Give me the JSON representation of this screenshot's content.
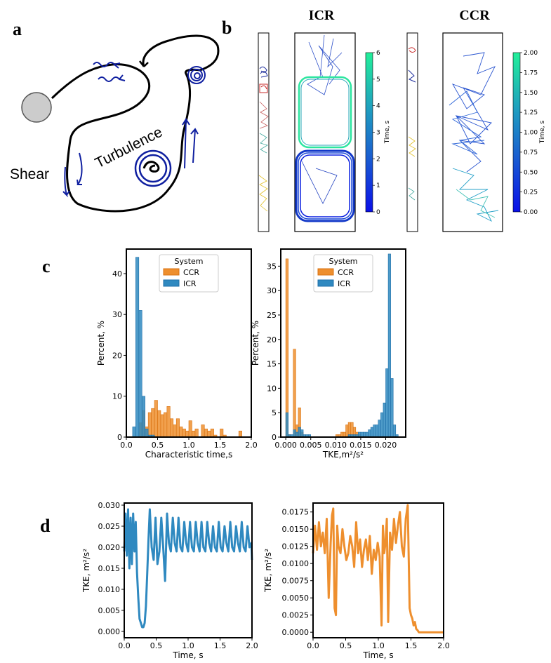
{
  "panel_labels": {
    "a": "a",
    "b": "b",
    "c": "c",
    "d": "d"
  },
  "schematic": {
    "shear_label": "Shear",
    "turbulence_label": "Turbulence"
  },
  "trajectories": {
    "icr_title": "ICR",
    "ccr_title": "CCR",
    "icr_colorbar": {
      "label": "Time, s",
      "ticks": [
        "0",
        "1",
        "2",
        "3",
        "4",
        "5",
        "6"
      ]
    },
    "ccr_colorbar": {
      "label": "Time, s",
      "ticks": [
        "0.00",
        "0.25",
        "0.50",
        "0.75",
        "1.00",
        "1.25",
        "1.50",
        "1.75",
        "2.00"
      ]
    }
  },
  "colors": {
    "ccr": "#ee8f2e",
    "icr": "#2f89c0",
    "ccr_edge": "#d97210",
    "icr_edge": "#1f6fa8",
    "arrow": "#0f1fa0"
  },
  "chart_data": [
    {
      "type": "histogram",
      "panel": "c-left",
      "xlabel": "Characteristic time,s",
      "ylabel": "Percent, %",
      "xlim": [
        0,
        2.0
      ],
      "ylim": [
        0,
        46
      ],
      "xticks": [
        "0.0",
        "0.5",
        "1.0",
        "1.5",
        "2.0"
      ],
      "yticks": [
        "0",
        "10",
        "20",
        "30",
        "40"
      ],
      "legend": {
        "title": "System",
        "entries": [
          "CCR",
          "ICR"
        ],
        "position": "top-center"
      },
      "series": [
        {
          "name": "CCR",
          "bin_start": 0.1,
          "bin_width": 0.05,
          "values": [
            0,
            0,
            3.5,
            6.5,
            2.5,
            6,
            7,
            9,
            6.5,
            5.5,
            6,
            7.5,
            4.5,
            3,
            4.5,
            2.5,
            2,
            1.5,
            4,
            1.5,
            2,
            0,
            3,
            2,
            1.5,
            2,
            0.5,
            0,
            2,
            0.5,
            0,
            0,
            0,
            0,
            1.5,
            0,
            0,
            0
          ]
        },
        {
          "name": "ICR",
          "bin_start": 0.1,
          "bin_width": 0.05,
          "values": [
            2.5,
            44,
            31,
            10,
            2,
            0.5,
            0.5,
            0,
            0,
            0,
            0,
            0,
            0,
            0,
            0,
            0,
            0,
            0,
            0,
            0,
            0,
            0,
            0,
            0,
            0,
            0,
            0,
            0,
            0,
            0,
            0,
            0,
            0,
            0,
            0,
            0,
            0,
            0
          ]
        }
      ]
    },
    {
      "type": "histogram",
      "panel": "c-right",
      "xlabel": "TKE,m²/s²",
      "ylabel": "Percent, %",
      "xlim": [
        -0.001,
        0.024
      ],
      "ylim": [
        0,
        38.5
      ],
      "xticks": [
        "0.000",
        "0.005",
        "0.010",
        "0.015",
        "0.020"
      ],
      "yticks": [
        "0",
        "5",
        "10",
        "15",
        "20",
        "25",
        "30",
        "35"
      ],
      "legend": {
        "title": "System",
        "entries": [
          "CCR",
          "ICR"
        ],
        "position": "top-center"
      },
      "series": [
        {
          "name": "CCR",
          "bin_start": 0,
          "bin_width": 0.0005,
          "values": [
            36.5,
            0.5,
            0,
            18,
            2.5,
            6,
            1,
            0,
            0,
            0,
            0,
            0,
            0,
            0,
            0,
            0,
            0,
            0,
            0,
            0,
            0.5,
            0.5,
            1,
            1,
            2.5,
            3,
            3,
            2,
            1,
            0.5,
            0,
            0,
            0,
            0,
            0,
            0,
            0,
            0,
            0,
            0,
            0,
            0,
            0,
            0,
            0,
            0
          ]
        },
        {
          "name": "ICR",
          "bin_start": 0,
          "bin_width": 0.0005,
          "values": [
            5,
            0.5,
            0.5,
            1.5,
            1,
            2,
            1.5,
            0.5,
            0.5,
            0.5,
            0,
            0,
            0,
            0,
            0,
            0,
            0,
            0,
            0,
            0,
            0,
            0,
            0,
            0,
            0,
            0.5,
            0.5,
            0.5,
            0.5,
            1,
            1,
            1,
            1,
            1.5,
            2,
            2.5,
            2.5,
            3.5,
            5,
            7,
            14,
            37.5,
            12,
            2.5,
            0.5,
            0
          ]
        }
      ]
    },
    {
      "type": "line",
      "panel": "d-left",
      "xlabel": "Time, s",
      "ylabel": "TKE, m²/s²",
      "xlim": [
        0,
        2.0
      ],
      "ylim": [
        -0.0015,
        0.0305
      ],
      "xticks": [
        "0.0",
        "0.5",
        "1.0",
        "1.5",
        "2.0"
      ],
      "yticks": [
        "0.000",
        "0.005",
        "0.010",
        "0.015",
        "0.020",
        "0.025",
        "0.030"
      ],
      "series": [
        {
          "name": "ICR",
          "x": [
            0,
            0.02,
            0.04,
            0.06,
            0.08,
            0.1,
            0.12,
            0.14,
            0.16,
            0.18,
            0.2,
            0.22,
            0.24,
            0.26,
            0.28,
            0.3,
            0.32,
            0.34,
            0.36,
            0.38,
            0.4,
            0.43,
            0.46,
            0.49,
            0.52,
            0.55,
            0.58,
            0.61,
            0.64,
            0.67,
            0.7,
            0.73,
            0.76,
            0.79,
            0.82,
            0.85,
            0.88,
            0.91,
            0.94,
            0.97,
            1.0,
            1.03,
            1.06,
            1.09,
            1.12,
            1.15,
            1.18,
            1.21,
            1.24,
            1.27,
            1.3,
            1.33,
            1.36,
            1.39,
            1.42,
            1.45,
            1.48,
            1.51,
            1.54,
            1.57,
            1.6,
            1.63,
            1.66,
            1.69,
            1.72,
            1.75,
            1.78,
            1.81,
            1.84,
            1.87,
            1.9,
            1.93,
            1.96,
            1.99,
            2.0
          ],
          "y": [
            0.019,
            0.028,
            0.018,
            0.029,
            0.015,
            0.027,
            0.016,
            0.028,
            0.019,
            0.026,
            0.014,
            0.008,
            0.003,
            0.002,
            0.001,
            0.001,
            0.002,
            0.006,
            0.014,
            0.022,
            0.029,
            0.02,
            0.017,
            0.027,
            0.016,
            0.019,
            0.027,
            0.02,
            0.012,
            0.028,
            0.021,
            0.019,
            0.027,
            0.021,
            0.019,
            0.027,
            0.02,
            0.019,
            0.026,
            0.021,
            0.019,
            0.026,
            0.02,
            0.019,
            0.026,
            0.021,
            0.019,
            0.026,
            0.02,
            0.019,
            0.026,
            0.021,
            0.019,
            0.025,
            0.02,
            0.019,
            0.026,
            0.02,
            0.019,
            0.025,
            0.021,
            0.019,
            0.026,
            0.02,
            0.019,
            0.025,
            0.021,
            0.019,
            0.026,
            0.02,
            0.019,
            0.025,
            0.02,
            0.021,
            0.017
          ]
        }
      ]
    },
    {
      "type": "line",
      "panel": "d-right",
      "xlabel": "Time, s",
      "ylabel": "TKE, m²/s²",
      "xlim": [
        0,
        2.0
      ],
      "ylim": [
        -0.0008,
        0.0188
      ],
      "xticks": [
        "0.0",
        "0.5",
        "1.0",
        "1.5",
        "2.0"
      ],
      "yticks": [
        "0.0000",
        "0.0025",
        "0.0050",
        "0.0075",
        "0.0100",
        "0.0125",
        "0.0150",
        "0.0175"
      ],
      "series": [
        {
          "name": "CCR",
          "x": [
            0,
            0.03,
            0.06,
            0.09,
            0.12,
            0.15,
            0.18,
            0.21,
            0.24,
            0.27,
            0.29,
            0.31,
            0.33,
            0.35,
            0.37,
            0.39,
            0.42,
            0.45,
            0.48,
            0.51,
            0.54,
            0.57,
            0.6,
            0.63,
            0.66,
            0.69,
            0.72,
            0.75,
            0.78,
            0.81,
            0.84,
            0.87,
            0.9,
            0.93,
            0.96,
            0.99,
            1.02,
            1.05,
            1.07,
            1.09,
            1.11,
            1.13,
            1.15,
            1.18,
            1.21,
            1.24,
            1.27,
            1.3,
            1.33,
            1.36,
            1.39,
            1.42,
            1.45,
            1.48,
            1.5,
            1.52,
            1.54,
            1.56,
            1.58,
            1.6,
            1.62,
            1.7,
            1.8,
            1.9,
            2.0
          ],
          "y": [
            0.0115,
            0.0155,
            0.012,
            0.016,
            0.0125,
            0.0145,
            0.0115,
            0.0165,
            0.005,
            0.013,
            0.017,
            0.018,
            0.0035,
            0.0025,
            0.0155,
            0.0125,
            0.0115,
            0.015,
            0.0125,
            0.0105,
            0.0115,
            0.014,
            0.0125,
            0.0095,
            0.016,
            0.0115,
            0.0135,
            0.0095,
            0.012,
            0.0135,
            0.0105,
            0.014,
            0.0085,
            0.012,
            0.0105,
            0.013,
            0.011,
            0.001,
            0.0155,
            0.0115,
            0.013,
            0.0165,
            0.0015,
            0.0145,
            0.012,
            0.0165,
            0.013,
            0.0155,
            0.0175,
            0.0125,
            0.011,
            0.0165,
            0.0185,
            0.0035,
            0.0025,
            0.002,
            0.001,
            0.0015,
            0.0005,
            0.0003,
            0,
            0,
            0,
            0,
            0
          ]
        }
      ]
    }
  ]
}
